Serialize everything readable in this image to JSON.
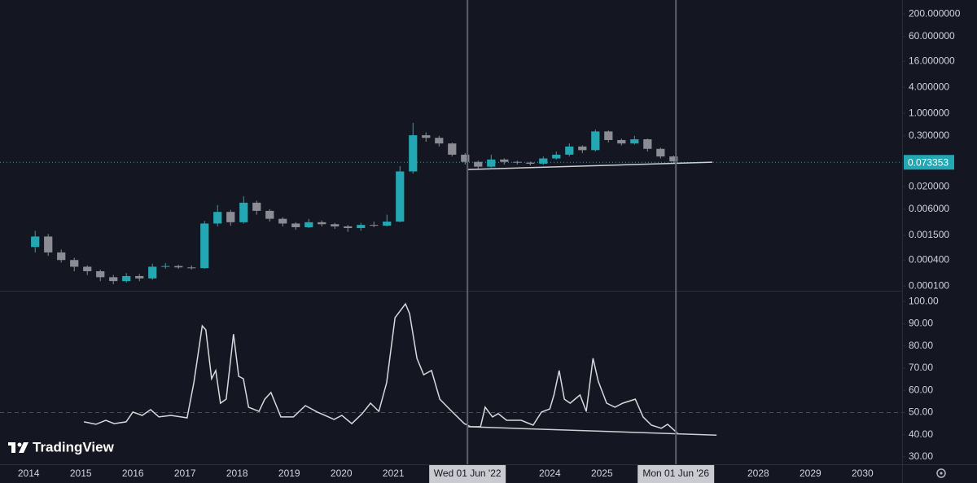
{
  "chart_data": [
    {
      "type": "candlestick",
      "log_scale": true,
      "xlim": [
        2013.45,
        2030.76
      ],
      "ylim": [
        7.76e-05,
        420
      ],
      "yticks": [
        {
          "value": 200,
          "label": "200.000000"
        },
        {
          "value": 60,
          "label": "60.000000"
        },
        {
          "value": 16,
          "label": "16.000000"
        },
        {
          "value": 4,
          "label": "4.000000"
        },
        {
          "value": 1,
          "label": "1.000000"
        },
        {
          "value": 0.3,
          "label": "0.300000"
        },
        {
          "value": 0.02,
          "label": "0.020000"
        },
        {
          "value": 0.006,
          "label": "0.006000"
        },
        {
          "value": 0.0015,
          "label": "0.001500"
        },
        {
          "value": 0.0004,
          "label": "0.000400"
        },
        {
          "value": 0.0001,
          "label": "0.000100"
        }
      ],
      "up_color": "#22a7b3",
      "down_color": "#8c8c94",
      "x": [
        2014.0,
        2014.25,
        2014.5,
        2014.75,
        2015.0,
        2015.25,
        2015.5,
        2015.75,
        2016.0,
        2016.25,
        2016.5,
        2016.75,
        2017.0,
        2017.25,
        2017.5,
        2017.75,
        2018.0,
        2018.25,
        2018.5,
        2018.75,
        2019.0,
        2019.25,
        2019.5,
        2019.75,
        2020.0,
        2020.25,
        2020.5,
        2020.75,
        2021.0,
        2021.25,
        2021.5,
        2021.75,
        2022.0,
        2022.25,
        2022.5,
        2022.75,
        2023.0,
        2023.25,
        2023.5,
        2023.75,
        2024.0,
        2024.25,
        2024.5,
        2024.75,
        2025.0,
        2025.25,
        2025.5,
        2025.75,
        2026.0,
        2026.25
      ],
      "open": [
        0.0008,
        0.0014,
        0.0006,
        0.0004,
        0.00028,
        0.00022,
        0.00016,
        0.00013,
        0.00017,
        0.00015,
        0.00028,
        0.00029,
        0.00027,
        0.00026,
        0.0028,
        0.0052,
        0.003,
        0.0085,
        0.0055,
        0.0036,
        0.0028,
        0.0023,
        0.003,
        0.0027,
        0.0024,
        0.0022,
        0.0026,
        0.0025,
        0.0031,
        0.045,
        0.31,
        0.27,
        0.2,
        0.11,
        0.075,
        0.058,
        0.085,
        0.075,
        0.072,
        0.068,
        0.09,
        0.11,
        0.17,
        0.14,
        0.38,
        0.24,
        0.2,
        0.25,
        0.15,
        0.1
      ],
      "high": [
        0.0019,
        0.0016,
        0.0007,
        0.00045,
        0.0003,
        0.00024,
        0.00018,
        0.0002,
        0.00019,
        0.00033,
        0.00034,
        0.00031,
        0.0003,
        0.0032,
        0.0075,
        0.0058,
        0.012,
        0.0095,
        0.006,
        0.0039,
        0.003,
        0.0036,
        0.0033,
        0.0029,
        0.0026,
        0.0029,
        0.0031,
        0.0045,
        0.06,
        0.6,
        0.36,
        0.3,
        0.21,
        0.12,
        0.08,
        0.11,
        0.09,
        0.08,
        0.076,
        0.1,
        0.13,
        0.2,
        0.18,
        0.42,
        0.4,
        0.26,
        0.3,
        0.26,
        0.16,
        0.105
      ],
      "low": [
        0.0006,
        0.0005,
        0.00035,
        0.00022,
        0.00018,
        0.00013,
        0.00011,
        0.00012,
        0.00013,
        0.00014,
        0.00025,
        0.00025,
        0.00024,
        0.00025,
        0.0024,
        0.0025,
        0.0028,
        0.0045,
        0.0031,
        0.0024,
        0.002,
        0.0022,
        0.0024,
        0.0021,
        0.0018,
        0.0019,
        0.0023,
        0.0024,
        0.003,
        0.04,
        0.22,
        0.17,
        0.1,
        0.065,
        0.05,
        0.055,
        0.065,
        0.065,
        0.062,
        0.064,
        0.085,
        0.1,
        0.12,
        0.13,
        0.21,
        0.18,
        0.19,
        0.13,
        0.09,
        0.072
      ],
      "close": [
        0.0014,
        0.0006,
        0.0004,
        0.00028,
        0.00022,
        0.00016,
        0.00013,
        0.00017,
        0.00015,
        0.00028,
        0.00029,
        0.00027,
        0.00026,
        0.0028,
        0.0052,
        0.003,
        0.0085,
        0.0055,
        0.0036,
        0.0028,
        0.0023,
        0.003,
        0.0027,
        0.0024,
        0.0022,
        0.0026,
        0.0025,
        0.0031,
        0.045,
        0.31,
        0.27,
        0.2,
        0.11,
        0.075,
        0.058,
        0.085,
        0.075,
        0.072,
        0.068,
        0.09,
        0.11,
        0.17,
        0.14,
        0.38,
        0.24,
        0.2,
        0.25,
        0.15,
        0.1,
        0.077
      ],
      "last_price": 0.073353,
      "last_price_color": "#22a7b3",
      "trendline": {
        "x": [
          2022.43,
          2027.12
        ],
        "values": [
          0.0499,
          0.0738
        ],
        "color": "#d0d0d4"
      }
    },
    {
      "type": "line",
      "color": "#d9d9dc",
      "xlim": [
        2013.45,
        2030.76
      ],
      "ylim": [
        26.7,
        104.8
      ],
      "yticks": [
        {
          "value": 100,
          "label": "100.00"
        },
        {
          "value": 90,
          "label": "90.00"
        },
        {
          "value": 80,
          "label": "80.00"
        },
        {
          "value": 70,
          "label": "70.00"
        },
        {
          "value": 60,
          "label": "60.00"
        },
        {
          "value": 50,
          "label": "50.00"
        },
        {
          "value": 40,
          "label": "40.00"
        },
        {
          "value": 30,
          "label": "30.00"
        }
      ],
      "xticks": [
        2014,
        2015,
        2016,
        2017,
        2018,
        2019,
        2020,
        2021,
        2024,
        2025,
        2028,
        2029,
        2030
      ],
      "reference_line": 50,
      "x": [
        2015.06,
        2015.29,
        2015.48,
        2015.64,
        2015.87,
        2016.0,
        2016.18,
        2016.34,
        2016.5,
        2016.73,
        2017.04,
        2017.17,
        2017.33,
        2017.4,
        2017.51,
        2017.59,
        2017.68,
        2017.79,
        2017.93,
        2018.03,
        2018.12,
        2018.22,
        2018.42,
        2018.53,
        2018.65,
        2018.84,
        2019.08,
        2019.31,
        2019.54,
        2019.86,
        2020.01,
        2020.2,
        2020.4,
        2020.56,
        2020.72,
        2020.87,
        2021.03,
        2021.23,
        2021.31,
        2021.45,
        2021.58,
        2021.73,
        2021.89,
        2022.12,
        2022.36,
        2022.48,
        2022.67,
        2022.76,
        2022.9,
        2023.01,
        2023.17,
        2023.45,
        2023.68,
        2023.84,
        2024.0,
        2024.08,
        2024.18,
        2024.28,
        2024.39,
        2024.58,
        2024.7,
        2024.83,
        2024.93,
        2025.09,
        2025.25,
        2025.4,
        2025.64,
        2025.79,
        2025.95,
        2026.14,
        2026.26,
        2026.45
      ],
      "values": [
        45.8,
        44.7,
        46.5,
        45,
        45.8,
        50.2,
        48.7,
        51.3,
        48,
        48.7,
        47.6,
        63.4,
        89,
        87.2,
        65.2,
        68.9,
        54.2,
        56,
        85.3,
        66.3,
        65.2,
        52.4,
        50.5,
        56,
        59,
        48,
        48,
        53.1,
        50.2,
        46.9,
        48.7,
        45,
        49.5,
        54.2,
        50.5,
        63.4,
        92.7,
        98.9,
        94.5,
        74.4,
        67,
        68.9,
        56,
        50.5,
        45,
        43.6,
        43.6,
        52.4,
        48,
        49.5,
        46.5,
        46.5,
        44.3,
        50.2,
        51.6,
        57.9,
        68.9,
        56,
        54.2,
        57.9,
        50.5,
        74.4,
        64.1,
        54.2,
        52.4,
        54.2,
        56,
        48,
        44.3,
        42.9,
        44.7,
        40.7
      ],
      "trendline": {
        "x": [
          2022.43,
          2027.2
        ],
        "values": [
          43.6,
          39.8
        ],
        "color": "#d0d0d4"
      }
    }
  ],
  "crosshairs": [
    {
      "x": 2022.42,
      "label": "Wed 01 Jun '22"
    },
    {
      "x": 2026.42,
      "label": "Mon 01 Jun '26"
    }
  ],
  "watermark": "TradingView"
}
